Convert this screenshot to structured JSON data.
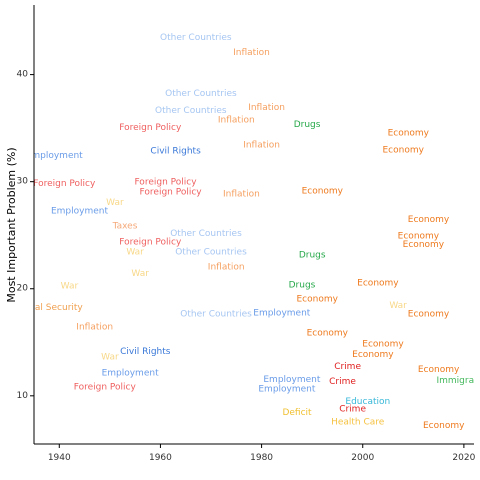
{
  "chart_data": {
    "type": "scatter",
    "title": "",
    "xlabel": "",
    "ylabel": "Most Important Problem (%)",
    "xlim": [
      1935,
      2022
    ],
    "ylim": [
      5.5,
      46.5
    ],
    "xticks": [
      1940,
      1960,
      1980,
      2000,
      2020
    ],
    "yticks": [
      10,
      20,
      30,
      40
    ],
    "grid": false,
    "legend": "none",
    "colors": {
      "Other Countries": "#a6c6f2",
      "Inflation": "#f5a060",
      "Foreign Policy": "#ef5f5f",
      "Civil Rights": "#3a78d8",
      "Employment": "#6a9ce8",
      "Drugs": "#27a84a",
      "Economy": "#ee7a1e",
      "War": "#f8d888",
      "Taxes": "#f5a878",
      "National Security": "#f0a050",
      "Crime": "#e02020",
      "Education": "#38b8d8",
      "Immigration": "#44b85c",
      "Deficit": "#f0c030",
      "Health Care": "#f5c242"
    },
    "points": [
      {
        "label": "Other Countries",
        "x": 1967,
        "y": 43.4
      },
      {
        "label": "Inflation",
        "x": 1978,
        "y": 42.0
      },
      {
        "label": "Other Countries",
        "x": 1968,
        "y": 38.2
      },
      {
        "label": "Inflation",
        "x": 1981,
        "y": 36.9
      },
      {
        "label": "Other Countries",
        "x": 1966,
        "y": 36.6
      },
      {
        "label": "Inflation",
        "x": 1975,
        "y": 35.7
      },
      {
        "label": "Foreign Policy",
        "x": 1958,
        "y": 35.0
      },
      {
        "label": "Drugs",
        "x": 1989,
        "y": 35.3
      },
      {
        "label": "Economy",
        "x": 2009,
        "y": 34.5
      },
      {
        "label": "Inflation",
        "x": 1980,
        "y": 33.4
      },
      {
        "label": "Civil Rights",
        "x": 1963,
        "y": 32.8
      },
      {
        "label": "Economy",
        "x": 2008,
        "y": 32.9
      },
      {
        "label": "Employment",
        "x": 1939,
        "y": 32.4
      },
      {
        "label": "Foreign Policy",
        "x": 1941,
        "y": 29.8
      },
      {
        "label": "Foreign Policy",
        "x": 1961,
        "y": 29.9
      },
      {
        "label": "Foreign Policy",
        "x": 1962,
        "y": 29.0
      },
      {
        "label": "Inflation",
        "x": 1976,
        "y": 28.8
      },
      {
        "label": "Economy",
        "x": 1992,
        "y": 29.1
      },
      {
        "label": "War",
        "x": 1951,
        "y": 28.0
      },
      {
        "label": "Employment",
        "x": 1944,
        "y": 27.2
      },
      {
        "label": "Economy",
        "x": 2013,
        "y": 26.4
      },
      {
        "label": "Taxes",
        "x": 1953,
        "y": 25.8
      },
      {
        "label": "Other Countries",
        "x": 1969,
        "y": 25.1
      },
      {
        "label": "Economy",
        "x": 2011,
        "y": 24.9
      },
      {
        "label": "Foreign Policy",
        "x": 1958,
        "y": 24.3
      },
      {
        "label": "Economy",
        "x": 2012,
        "y": 24.1
      },
      {
        "label": "War",
        "x": 1955,
        "y": 23.4
      },
      {
        "label": "Other Countries",
        "x": 1970,
        "y": 23.4
      },
      {
        "label": "Drugs",
        "x": 1990,
        "y": 23.1
      },
      {
        "label": "Inflation",
        "x": 1973,
        "y": 22.0
      },
      {
        "label": "War",
        "x": 1956,
        "y": 21.4
      },
      {
        "label": "War",
        "x": 1942,
        "y": 20.2
      },
      {
        "label": "Drugs",
        "x": 1988,
        "y": 20.3
      },
      {
        "label": "Economy",
        "x": 2003,
        "y": 20.5
      },
      {
        "label": "Economy",
        "x": 1991,
        "y": 19.0
      },
      {
        "label": "National Security",
        "x": 1937,
        "y": 18.2
      },
      {
        "label": "War",
        "x": 2007,
        "y": 18.4
      },
      {
        "label": "Other Countries",
        "x": 1971,
        "y": 17.6
      },
      {
        "label": "Employment",
        "x": 1984,
        "y": 17.7
      },
      {
        "label": "Economy",
        "x": 2013,
        "y": 17.6
      },
      {
        "label": "Inflation",
        "x": 1947,
        "y": 16.4
      },
      {
        "label": "Economy",
        "x": 1993,
        "y": 15.8
      },
      {
        "label": "Economy",
        "x": 2004,
        "y": 14.8
      },
      {
        "label": "Civil Rights",
        "x": 1957,
        "y": 14.1
      },
      {
        "label": "Economy",
        "x": 2002,
        "y": 13.8
      },
      {
        "label": "War",
        "x": 1950,
        "y": 13.6
      },
      {
        "label": "Crime",
        "x": 1997,
        "y": 12.7
      },
      {
        "label": "Economy",
        "x": 2015,
        "y": 12.4
      },
      {
        "label": "Employment",
        "x": 1954,
        "y": 12.1
      },
      {
        "label": "Employment",
        "x": 1986,
        "y": 11.5
      },
      {
        "label": "Immigration",
        "x": 2020,
        "y": 11.4
      },
      {
        "label": "Crime",
        "x": 1996,
        "y": 11.3
      },
      {
        "label": "Foreign Policy",
        "x": 1949,
        "y": 10.8
      },
      {
        "label": "Employment",
        "x": 1985,
        "y": 10.6
      },
      {
        "label": "Education",
        "x": 2001,
        "y": 9.4
      },
      {
        "label": "Crime",
        "x": 1998,
        "y": 8.7
      },
      {
        "label": "Deficit",
        "x": 1987,
        "y": 8.4
      },
      {
        "label": "Health Care",
        "x": 1999,
        "y": 7.5
      },
      {
        "label": "Economy",
        "x": 2016,
        "y": 7.2
      }
    ]
  }
}
